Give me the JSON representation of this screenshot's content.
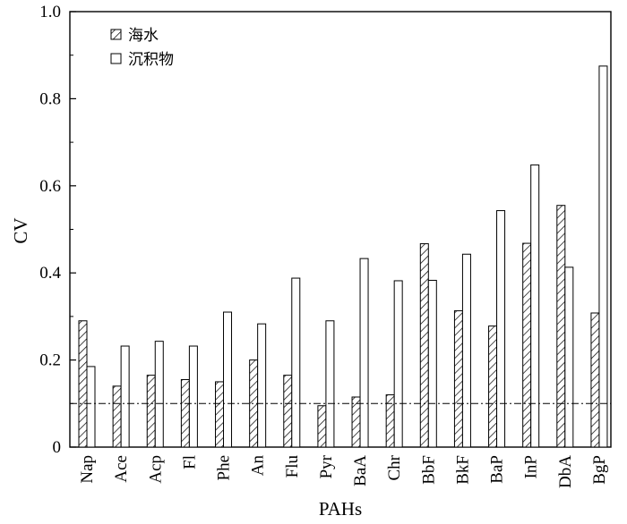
{
  "chart_data": {
    "type": "bar",
    "xlabel": "PAHs",
    "ylabel": "CV",
    "ylim": [
      0,
      1.0
    ],
    "yticks": [
      "0",
      "0.2",
      "0.4",
      "0.6",
      "0.8",
      "1.0"
    ],
    "legend_position": "top-left",
    "reference_line": 0.1,
    "categories": [
      "Nap",
      "Ace",
      "Acp",
      "Fl",
      "Phe",
      "An",
      "Flu",
      "Pyr",
      "BaA",
      "Chr",
      "BbF",
      "BkF",
      "BaP",
      "InP",
      "DbA",
      "BgP"
    ],
    "series": [
      {
        "name": "海水",
        "pattern": "hatched",
        "values": [
          0.29,
          0.14,
          0.165,
          0.155,
          0.15,
          0.2,
          0.165,
          0.095,
          0.115,
          0.12,
          0.467,
          0.313,
          0.278,
          0.468,
          0.555,
          0.308
        ]
      },
      {
        "name": "沉积物",
        "pattern": "hollow",
        "values": [
          0.185,
          0.232,
          0.243,
          0.232,
          0.31,
          0.283,
          0.388,
          0.29,
          0.433,
          0.382,
          0.383,
          0.443,
          0.543,
          0.648,
          0.413,
          0.875
        ]
      }
    ]
  }
}
